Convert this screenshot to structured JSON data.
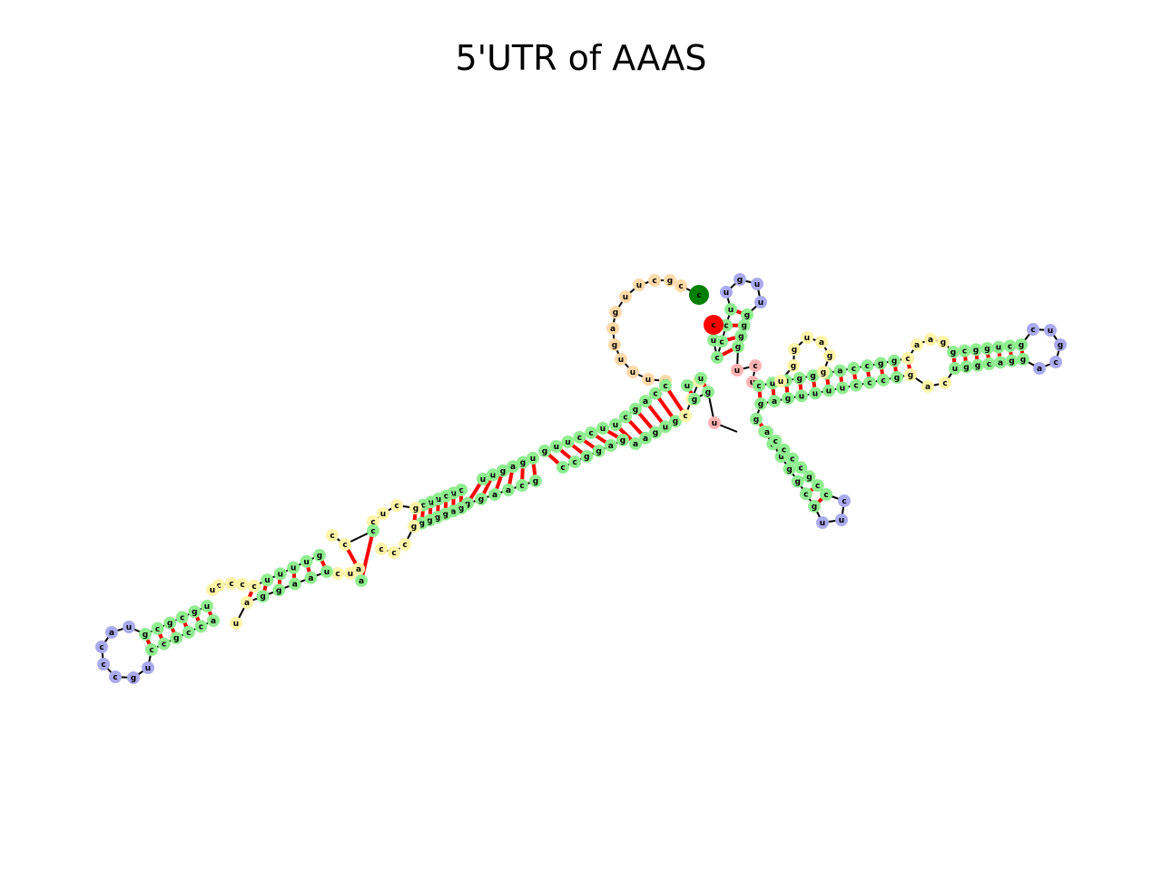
{
  "title": "5'UTR of AAAS",
  "colors": {
    "stem": "#90ee90",
    "hairpin_loop": "#aaaaee",
    "interior_loop": "#fff4a8",
    "external_loop": "#ffd9a8",
    "multiloop": "#ffb2b2",
    "five_prime_end": "#008000",
    "three_prime_end": "#ff0000",
    "backbone": "#000000",
    "base_pair": "#ff0000"
  },
  "five_prime_label": "c",
  "three_prime_label": "c"
}
